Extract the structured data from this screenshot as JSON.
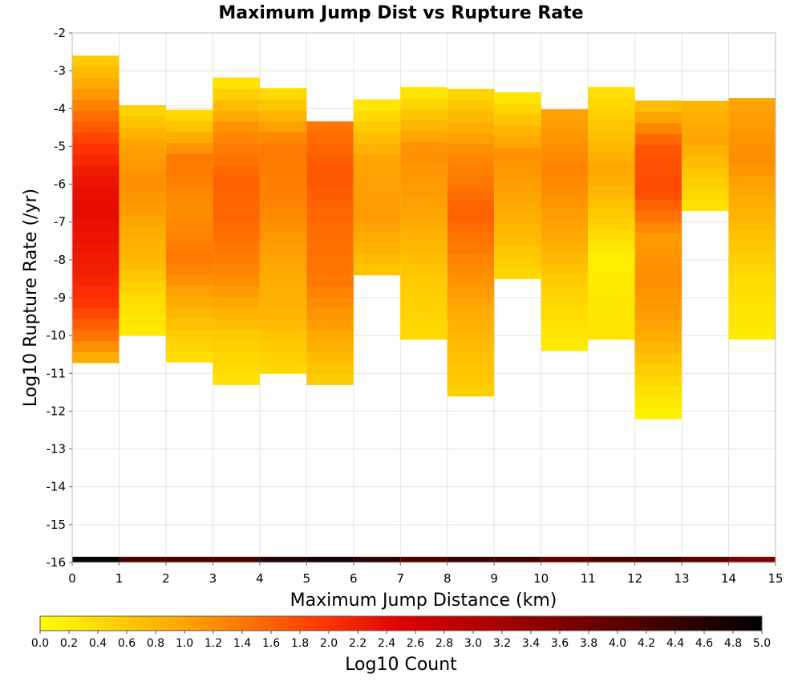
{
  "chart_data": {
    "type": "heatmap",
    "title": "Maximum Jump Dist vs Rupture Rate",
    "xlabel": "Maximum Jump Distance (km)",
    "ylabel": "Log10 Rupture Rate (/yr)",
    "xlim": [
      0,
      15
    ],
    "ylim": [
      -16,
      -2
    ],
    "x_ticks": [
      "0",
      "1",
      "2",
      "3",
      "4",
      "5",
      "6",
      "7",
      "8",
      "9",
      "10",
      "11",
      "12",
      "13",
      "14",
      "15"
    ],
    "y_ticks": [
      "-2",
      "-3",
      "-4",
      "-5",
      "-6",
      "-7",
      "-8",
      "-9",
      "-10",
      "-11",
      "-12",
      "-13",
      "-14",
      "-15",
      "-16"
    ],
    "x_bin_width": 1,
    "y_bin_height": 0.29,
    "grid": true,
    "colorbar": {
      "label": "Log10 Count",
      "min": 0.0,
      "max": 5.0,
      "ticks": [
        "0.0",
        "0.2",
        "0.4",
        "0.6",
        "0.8",
        "1.0",
        "1.2",
        "1.4",
        "1.6",
        "1.8",
        "2.0",
        "2.2",
        "2.4",
        "2.6",
        "2.8",
        "3.0",
        "3.2",
        "3.4",
        "3.6",
        "3.8",
        "4.0",
        "4.2",
        "4.4",
        "4.6",
        "4.8",
        "5.0"
      ],
      "colors": [
        "#ffff00",
        "#ffa500",
        "#ff0000",
        "#000000"
      ]
    },
    "cell_value_ranges": [
      {
        "x": 0,
        "y_from": -10.72,
        "y_to": -2.73,
        "values": [
          0.5,
          1.0,
          1.5,
          2.0,
          2.3,
          2.4,
          2.3,
          2.2,
          2.0,
          1.5,
          0.8
        ]
      },
      {
        "x": 1,
        "y_from": -10.0,
        "y_to": -3.9,
        "values": [
          0.4,
          1.0,
          1.2,
          1.0,
          0.8,
          0.4,
          0.2
        ]
      },
      {
        "x": 2,
        "y_from": -10.7,
        "y_to": -3.9,
        "values": [
          0.3,
          1.4,
          1.2,
          1.4,
          0.8,
          0.3
        ]
      },
      {
        "x": 3,
        "y_from": -11.3,
        "y_to": -3.3,
        "values": [
          0.2,
          1.2,
          1.6,
          1.5,
          1.2,
          0.6,
          0.3
        ]
      },
      {
        "x": 4,
        "y_from": -11.0,
        "y_to": -3.6,
        "values": [
          0.3,
          1.4,
          1.3,
          1.0,
          0.8,
          0.4
        ]
      },
      {
        "x": 5,
        "y_from": -11.3,
        "y_to": -4.2,
        "values": [
          1.4,
          1.7,
          1.5,
          1.4,
          1.0,
          0.5
        ]
      },
      {
        "x": 6,
        "y_from": -8.4,
        "y_to": -3.9,
        "values": [
          0.2,
          1.0,
          1.1,
          0.6
        ]
      },
      {
        "x": 7,
        "y_from": -10.1,
        "y_to": -3.3,
        "values": [
          0.2,
          1.2,
          1.0,
          0.6,
          0.4
        ]
      },
      {
        "x": 8,
        "y_from": -11.6,
        "y_to": -3.6,
        "values": [
          0.4,
          1.2,
          1.6,
          1.2,
          0.8,
          0.5
        ]
      },
      {
        "x": 9,
        "y_from": -8.5,
        "y_to": -3.6,
        "values": [
          0.2,
          1.2,
          0.9,
          0.4
        ]
      },
      {
        "x": 10,
        "y_from": -10.4,
        "y_to": -3.9,
        "values": [
          1.0,
          1.3,
          1.0,
          0.5,
          0.2
        ]
      },
      {
        "x": 11,
        "y_from": -10.1,
        "y_to": -3.3,
        "values": [
          0.3,
          1.0,
          0.2,
          0.3
        ]
      },
      {
        "x": 12,
        "y_from": -12.2,
        "y_to": -3.9,
        "values": [
          0.6,
          1.7,
          1.8,
          1.1,
          1.2,
          1.0,
          0.5,
          0.1
        ]
      },
      {
        "x": 13,
        "y_from": -6.7,
        "y_to": -3.9,
        "values": [
          0.8,
          1.0,
          0.6,
          0.3
        ]
      },
      {
        "x": 14,
        "y_from": -10.1,
        "y_to": -3.6,
        "values": [
          1.0,
          1.2,
          0.8,
          0.4,
          0.2
        ]
      }
    ],
    "bottom_row": {
      "y_from": -16.0,
      "y_to": -15.85,
      "values": [
        4.9,
        4.2,
        4.2,
        4.2,
        4.6,
        4.8,
        4.5,
        4.2,
        4.4,
        4.3,
        3.9,
        4.2,
        4.3,
        4.0,
        3.6
      ]
    }
  }
}
